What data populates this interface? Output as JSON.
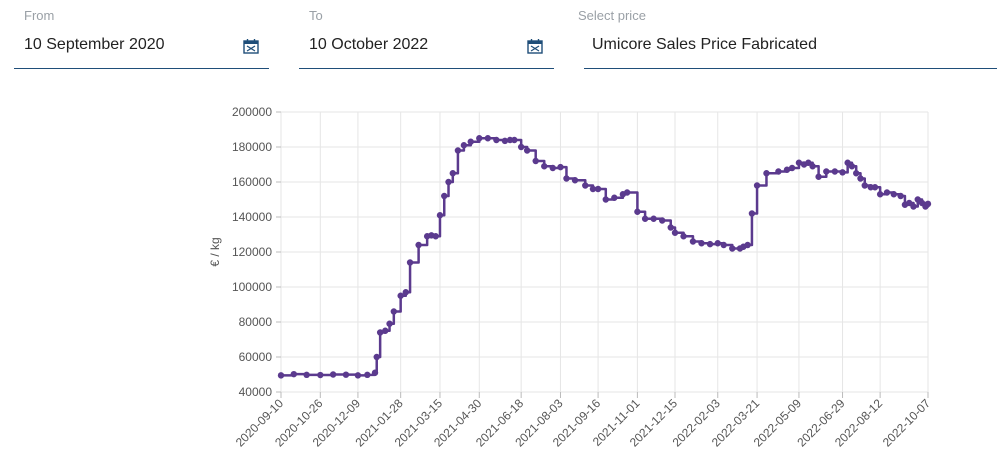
{
  "filters": {
    "from": {
      "label": "From",
      "value": "10 September 2020",
      "icon": "calendar-icon"
    },
    "to": {
      "label": "To",
      "value": "10 October 2022",
      "icon": "calendar-icon"
    },
    "price": {
      "label": "Select price",
      "value": "Umicore Sales Price Fabricated"
    }
  },
  "colors": {
    "series": "#5b3a8e",
    "underline": "#1f4e79",
    "grid": "#e6e6e6"
  },
  "chart_data": {
    "type": "line",
    "ylabel": "€ / kg",
    "ylim": [
      40000,
      200000
    ],
    "yticks": [
      40000,
      60000,
      80000,
      100000,
      120000,
      140000,
      160000,
      180000,
      200000
    ],
    "xlim": [
      "2020-09-10",
      "2022-10-07"
    ],
    "xticks": [
      "2020-09-10",
      "2020-10-26",
      "2020-12-09",
      "2021-01-28",
      "2021-03-15",
      "2021-04-30",
      "2021-06-18",
      "2021-08-03",
      "2021-09-16",
      "2021-11-01",
      "2021-12-15",
      "2022-02-03",
      "2022-03-21",
      "2022-05-09",
      "2022-06-29",
      "2022-08-12",
      "2022-10-07"
    ],
    "grid": true,
    "series": [
      {
        "x": [
          "2020-09-10",
          "2020-09-25",
          "2020-10-10",
          "2020-10-26",
          "2020-11-10",
          "2020-11-25",
          "2020-12-09",
          "2020-12-20",
          "2020-12-29",
          "2020-12-31",
          "2021-01-04",
          "2021-01-10",
          "2021-01-15",
          "2021-01-20",
          "2021-01-28",
          "2021-02-03",
          "2021-02-08",
          "2021-02-18",
          "2021-02-28",
          "2021-03-05",
          "2021-03-10",
          "2021-03-15",
          "2021-03-20",
          "2021-03-25",
          "2021-03-30",
          "2021-04-05",
          "2021-04-12",
          "2021-04-20",
          "2021-04-30",
          "2021-05-10",
          "2021-05-20",
          "2021-05-30",
          "2021-06-05",
          "2021-06-10",
          "2021-06-18",
          "2021-06-25",
          "2021-07-05",
          "2021-07-15",
          "2021-07-25",
          "2021-08-03",
          "2021-08-10",
          "2021-08-20",
          "2021-09-01",
          "2021-09-10",
          "2021-09-16",
          "2021-09-25",
          "2021-10-05",
          "2021-10-15",
          "2021-10-20",
          "2021-11-01",
          "2021-11-10",
          "2021-11-20",
          "2021-11-30",
          "2021-12-10",
          "2021-12-15",
          "2021-12-25",
          "2022-01-05",
          "2022-01-15",
          "2022-01-25",
          "2022-02-03",
          "2022-02-10",
          "2022-02-20",
          "2022-03-01",
          "2022-03-05",
          "2022-03-10",
          "2022-03-15",
          "2022-03-21",
          "2022-04-01",
          "2022-04-15",
          "2022-04-25",
          "2022-05-01",
          "2022-05-09",
          "2022-05-15",
          "2022-05-20",
          "2022-05-25",
          "2022-06-01",
          "2022-06-10",
          "2022-06-20",
          "2022-06-29",
          "2022-07-05",
          "2022-07-10",
          "2022-07-15",
          "2022-07-20",
          "2022-07-25",
          "2022-08-01",
          "2022-08-06",
          "2022-08-12",
          "2022-08-20",
          "2022-08-28",
          "2022-09-05",
          "2022-09-10",
          "2022-09-15",
          "2022-09-20",
          "2022-09-25",
          "2022-09-30",
          "2022-10-04",
          "2022-10-07"
        ],
        "y": [
          49500,
          50200,
          49800,
          49700,
          50000,
          49900,
          49500,
          49800,
          51000,
          60000,
          74000,
          75000,
          79000,
          86000,
          95000,
          97000,
          114000,
          124000,
          129000,
          129500,
          129000,
          141000,
          152000,
          160000,
          165000,
          178000,
          181000,
          183000,
          185000,
          185000,
          184000,
          183500,
          184000,
          184000,
          180000,
          178000,
          172000,
          169000,
          168000,
          168500,
          162000,
          161000,
          158000,
          156000,
          156000,
          150000,
          151000,
          153000,
          154000,
          143000,
          139000,
          139000,
          138000,
          134000,
          131000,
          129000,
          126000,
          125000,
          124500,
          125000,
          124000,
          122000,
          122000,
          123000,
          124000,
          142000,
          158000,
          165000,
          166000,
          167000,
          168000,
          171000,
          170000,
          171000,
          169000,
          163000,
          166000,
          166000,
          165500,
          171000,
          169000,
          165000,
          162000,
          158000,
          157000,
          157000,
          153000,
          154000,
          153000,
          152000,
          147000,
          148000,
          146000,
          150000,
          148000,
          146000,
          147500
        ]
      }
    ]
  }
}
